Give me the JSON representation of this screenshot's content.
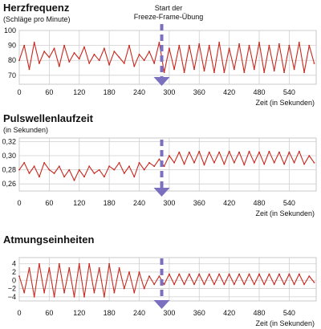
{
  "annotation": {
    "line1": "Start der",
    "line2": "Freeze-Frame-Übung",
    "x": 285,
    "color": "#7b6fbf"
  },
  "series_color": "#c8281e",
  "chart_data": [
    {
      "type": "line",
      "title": "Herzfrequenz",
      "subtitle": "(Schläge pro Minute)",
      "xlabel": "Zeit (in Sekunden)",
      "ylabel": "",
      "xlim": [
        0,
        594
      ],
      "ylim": [
        64,
        100
      ],
      "xticks": [
        0,
        60,
        120,
        180,
        240,
        300,
        360,
        420,
        480,
        540
      ],
      "yticks": [
        70,
        80,
        90,
        100
      ],
      "ytick_labels": [
        "70",
        "80",
        "90",
        "100"
      ],
      "grid": true,
      "series": [
        {
          "x": [
            0,
            10,
            20,
            30,
            40,
            50,
            60,
            70,
            80,
            90,
            100,
            110,
            120,
            130,
            140,
            150,
            160,
            170,
            180,
            190,
            200,
            210,
            220,
            230,
            240,
            250,
            260,
            270,
            280,
            290,
            300,
            310,
            320,
            330,
            340,
            350,
            360,
            370,
            380,
            390,
            400,
            410,
            420,
            430,
            440,
            450,
            460,
            470,
            480,
            490,
            500,
            510,
            520,
            530,
            540,
            550,
            560,
            570,
            580,
            590
          ],
          "values": [
            80,
            90,
            74,
            92,
            78,
            86,
            82,
            88,
            76,
            90,
            79,
            85,
            81,
            89,
            78,
            84,
            80,
            88,
            77,
            86,
            82,
            78,
            90,
            76,
            84,
            80,
            86,
            78,
            92,
            72,
            88,
            74,
            90,
            72,
            90,
            74,
            91,
            73,
            90,
            72,
            92,
            72,
            88,
            74,
            91,
            72,
            90,
            74,
            92,
            72,
            90,
            73,
            91,
            72,
            90,
            74,
            92,
            72,
            90,
            78
          ]
        }
      ]
    },
    {
      "type": "line",
      "title": "Pulswellenlaufzeit",
      "subtitle": "(in Sekunden)",
      "xlabel": "Zeit (in Sekunden)",
      "ylabel": "",
      "xlim": [
        0,
        594
      ],
      "ylim": [
        0.25,
        0.325
      ],
      "xticks": [
        0,
        60,
        120,
        180,
        240,
        300,
        360,
        420,
        480,
        540
      ],
      "yticks": [
        0.26,
        0.28,
        0.3,
        0.32
      ],
      "ytick_labels": [
        "0,26",
        "0,28",
        "0,30",
        "0,32"
      ],
      "grid": true,
      "series": [
        {
          "x": [
            0,
            10,
            20,
            30,
            40,
            50,
            60,
            70,
            80,
            90,
            100,
            110,
            120,
            130,
            140,
            150,
            160,
            170,
            180,
            190,
            200,
            210,
            220,
            230,
            240,
            250,
            260,
            270,
            280,
            290,
            300,
            310,
            320,
            330,
            340,
            350,
            360,
            370,
            380,
            390,
            400,
            410,
            420,
            430,
            440,
            450,
            460,
            470,
            480,
            490,
            500,
            510,
            520,
            530,
            540,
            550,
            560,
            570,
            580,
            590
          ],
          "values": [
            0.28,
            0.29,
            0.275,
            0.285,
            0.27,
            0.29,
            0.28,
            0.275,
            0.285,
            0.27,
            0.28,
            0.265,
            0.28,
            0.27,
            0.285,
            0.275,
            0.28,
            0.27,
            0.285,
            0.28,
            0.29,
            0.275,
            0.285,
            0.27,
            0.29,
            0.28,
            0.29,
            0.285,
            0.295,
            0.285,
            0.3,
            0.29,
            0.305,
            0.288,
            0.305,
            0.29,
            0.306,
            0.287,
            0.305,
            0.29,
            0.305,
            0.288,
            0.306,
            0.29,
            0.305,
            0.287,
            0.306,
            0.29,
            0.305,
            0.288,
            0.306,
            0.29,
            0.305,
            0.288,
            0.305,
            0.29,
            0.306,
            0.288,
            0.3,
            0.29
          ]
        }
      ]
    },
    {
      "type": "line",
      "title": "Atmungseinheiten",
      "subtitle": "",
      "xlabel": "Zeit (in Sekunden)",
      "ylabel": "",
      "xlim": [
        0,
        594
      ],
      "ylim": [
        -5,
        5.5
      ],
      "xticks": [
        0,
        60,
        120,
        180,
        240,
        300,
        360,
        420,
        480,
        540
      ],
      "yticks": [
        -4,
        -2,
        0,
        2,
        4
      ],
      "ytick_labels": [
        "−4",
        "−2",
        "0",
        "2",
        "4"
      ],
      "grid": true,
      "series": [
        {
          "x": [
            0,
            10,
            20,
            30,
            40,
            50,
            60,
            70,
            80,
            90,
            100,
            110,
            120,
            130,
            140,
            150,
            160,
            170,
            180,
            190,
            200,
            210,
            220,
            230,
            240,
            250,
            260,
            270,
            280,
            290,
            300,
            310,
            320,
            330,
            340,
            350,
            360,
            370,
            380,
            390,
            400,
            410,
            420,
            430,
            440,
            450,
            460,
            470,
            480,
            490,
            500,
            510,
            520,
            530,
            540,
            550,
            560,
            570,
            580,
            590
          ],
          "values": [
            1,
            -3,
            3,
            -4,
            4,
            -3,
            3,
            -4,
            4,
            -3,
            3,
            -4,
            4,
            -4,
            4,
            -3,
            3,
            -4,
            4,
            -3,
            3,
            -2,
            2,
            -3,
            2,
            -2,
            1,
            -1,
            1,
            -1,
            1.5,
            -1,
            1.5,
            -1,
            1.5,
            -1,
            1.5,
            -1,
            1.5,
            -1,
            1.5,
            -1,
            1.5,
            -1,
            1.5,
            -1,
            1.5,
            -1,
            1.5,
            -1,
            1.5,
            -1,
            1.5,
            -1,
            1.5,
            -1,
            1.5,
            -1,
            1,
            -0.5
          ]
        }
      ]
    }
  ]
}
